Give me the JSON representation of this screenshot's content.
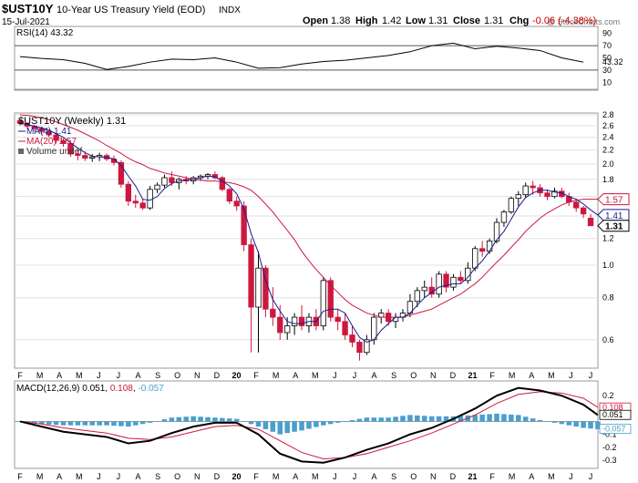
{
  "header": {
    "symbol": "$UST10Y",
    "name": "10-Year US Treasury Yield (EOD)",
    "exchange": "INDX",
    "date": "15-Jul-2021",
    "watermark": "@ StockCharts.com",
    "open_label": "Open",
    "open": "1.38",
    "high_label": "High",
    "high": "1.42",
    "low_label": "Low",
    "low": "1.31",
    "close_label": "Close",
    "close": "1.31",
    "chg_label": "Chg",
    "chg": "-0.06 (-4.38%)"
  },
  "colors": {
    "up": "#ffffff",
    "down": "#cc1840",
    "ma4": "#1a1a8c",
    "ma20": "#cc1840",
    "rsi_line": "#000000",
    "rsi_over": "#3a7d3a",
    "rsi_under": "#8b4a4a",
    "macd_line": "#000000",
    "signal_line": "#cc1840",
    "hist": "#4a9fcc",
    "chg": "#cc0000"
  },
  "chart_data": [
    {
      "type": "line",
      "panel": "rsi",
      "label": "RSI(14)",
      "last_value": "43.32",
      "ylim": [
        0,
        100
      ],
      "y_ticks": [
        "90",
        "70",
        "50",
        "30",
        "10"
      ],
      "reference_lines": [
        70,
        30
      ],
      "x": [
        0,
        3,
        6,
        9,
        12,
        15,
        18,
        21,
        24,
        27,
        30,
        33,
        36,
        39,
        42,
        45,
        48,
        51,
        54,
        57,
        60,
        63,
        66,
        69,
        72,
        75,
        78
      ],
      "values": [
        52,
        49,
        47,
        41,
        31,
        36,
        43,
        48,
        47,
        50,
        43,
        33,
        34,
        40,
        44,
        46,
        50,
        54,
        60,
        70,
        74,
        65,
        69,
        66,
        62,
        50,
        43
      ]
    },
    {
      "type": "candlestick",
      "panel": "price",
      "label": "$UST10Y (Weekly)",
      "last_value": "1.31",
      "scale": "log",
      "ylim": [
        0.5,
        2.8
      ],
      "y_ticks": [
        "2.8",
        "2.6",
        "2.4",
        "2.2",
        "2.0",
        "1.8",
        "1.6",
        "1.4",
        "1.2",
        "1.0",
        "0.8",
        "0.6"
      ],
      "right_labels": [
        {
          "text": "1.57",
          "value": 1.57
        },
        {
          "text": "1.41",
          "value": 1.41
        },
        {
          "text": "1.31",
          "value": 1.31
        }
      ],
      "legend": [
        {
          "text": "MA(4) 1.41"
        },
        {
          "text": "MA(20) 1.57"
        },
        {
          "text": "Volume undef"
        }
      ],
      "x_ticks": [
        "F",
        "M",
        "A",
        "M",
        "J",
        "J",
        "A",
        "S",
        "O",
        "N",
        "D",
        "20",
        "F",
        "M",
        "A",
        "M",
        "J",
        "J",
        "A",
        "S",
        "O",
        "N",
        "D",
        "21",
        "F",
        "M",
        "A",
        "M",
        "J",
        "J"
      ],
      "bars": [
        {
          "o": 2.69,
          "h": 2.72,
          "l": 2.6,
          "c": 2.64
        },
        {
          "o": 2.64,
          "h": 2.66,
          "l": 2.55,
          "c": 2.59
        },
        {
          "o": 2.59,
          "h": 2.62,
          "l": 2.5,
          "c": 2.55
        },
        {
          "o": 2.55,
          "h": 2.58,
          "l": 2.45,
          "c": 2.5
        },
        {
          "o": 2.5,
          "h": 2.53,
          "l": 2.4,
          "c": 2.44
        },
        {
          "o": 2.44,
          "h": 2.47,
          "l": 2.3,
          "c": 2.35
        },
        {
          "o": 2.35,
          "h": 2.38,
          "l": 2.25,
          "c": 2.3
        },
        {
          "o": 2.3,
          "h": 2.33,
          "l": 2.1,
          "c": 2.14
        },
        {
          "o": 2.14,
          "h": 2.2,
          "l": 2.05,
          "c": 2.12
        },
        {
          "o": 2.12,
          "h": 2.18,
          "l": 2.04,
          "c": 2.08
        },
        {
          "o": 2.08,
          "h": 2.14,
          "l": 2.03,
          "c": 2.1
        },
        {
          "o": 2.1,
          "h": 2.16,
          "l": 2.04,
          "c": 2.12
        },
        {
          "o": 2.12,
          "h": 2.15,
          "l": 2.04,
          "c": 2.07
        },
        {
          "o": 2.07,
          "h": 2.12,
          "l": 1.98,
          "c": 2.02
        },
        {
          "o": 2.02,
          "h": 2.05,
          "l": 1.7,
          "c": 1.74
        },
        {
          "o": 1.74,
          "h": 1.78,
          "l": 1.5,
          "c": 1.55
        },
        {
          "o": 1.55,
          "h": 1.62,
          "l": 1.48,
          "c": 1.53
        },
        {
          "o": 1.53,
          "h": 1.58,
          "l": 1.46,
          "c": 1.48
        },
        {
          "o": 1.48,
          "h": 1.72,
          "l": 1.46,
          "c": 1.68
        },
        {
          "o": 1.68,
          "h": 1.76,
          "l": 1.64,
          "c": 1.73
        },
        {
          "o": 1.73,
          "h": 1.86,
          "l": 1.7,
          "c": 1.82
        },
        {
          "o": 1.82,
          "h": 1.9,
          "l": 1.72,
          "c": 1.76
        },
        {
          "o": 1.76,
          "h": 1.82,
          "l": 1.68,
          "c": 1.8
        },
        {
          "o": 1.8,
          "h": 1.84,
          "l": 1.74,
          "c": 1.78
        },
        {
          "o": 1.78,
          "h": 1.84,
          "l": 1.74,
          "c": 1.82
        },
        {
          "o": 1.82,
          "h": 1.86,
          "l": 1.78,
          "c": 1.84
        },
        {
          "o": 1.84,
          "h": 1.88,
          "l": 1.8,
          "c": 1.86
        },
        {
          "o": 1.86,
          "h": 1.9,
          "l": 1.8,
          "c": 1.82
        },
        {
          "o": 1.82,
          "h": 1.84,
          "l": 1.66,
          "c": 1.68
        },
        {
          "o": 1.68,
          "h": 1.7,
          "l": 1.52,
          "c": 1.55
        },
        {
          "o": 1.55,
          "h": 1.6,
          "l": 1.45,
          "c": 1.5
        },
        {
          "o": 1.5,
          "h": 1.55,
          "l": 1.1,
          "c": 1.15
        },
        {
          "o": 1.15,
          "h": 1.2,
          "l": 0.55,
          "c": 0.75
        },
        {
          "o": 0.75,
          "h": 1.1,
          "l": 0.55,
          "c": 0.98
        },
        {
          "o": 0.98,
          "h": 1.0,
          "l": 0.7,
          "c": 0.74
        },
        {
          "o": 0.74,
          "h": 0.86,
          "l": 0.66,
          "c": 0.7
        },
        {
          "o": 0.7,
          "h": 0.76,
          "l": 0.6,
          "c": 0.63
        },
        {
          "o": 0.63,
          "h": 0.7,
          "l": 0.6,
          "c": 0.66
        },
        {
          "o": 0.66,
          "h": 0.72,
          "l": 0.62,
          "c": 0.7
        },
        {
          "o": 0.7,
          "h": 0.76,
          "l": 0.64,
          "c": 0.66
        },
        {
          "o": 0.66,
          "h": 0.72,
          "l": 0.63,
          "c": 0.7
        },
        {
          "o": 0.7,
          "h": 0.74,
          "l": 0.64,
          "c": 0.66
        },
        {
          "o": 0.66,
          "h": 0.92,
          "l": 0.64,
          "c": 0.9
        },
        {
          "o": 0.9,
          "h": 0.92,
          "l": 0.68,
          "c": 0.7
        },
        {
          "o": 0.7,
          "h": 0.74,
          "l": 0.64,
          "c": 0.68
        },
        {
          "o": 0.68,
          "h": 0.72,
          "l": 0.6,
          "c": 0.62
        },
        {
          "o": 0.62,
          "h": 0.66,
          "l": 0.57,
          "c": 0.59
        },
        {
          "o": 0.59,
          "h": 0.6,
          "l": 0.52,
          "c": 0.55
        },
        {
          "o": 0.55,
          "h": 0.62,
          "l": 0.54,
          "c": 0.6
        },
        {
          "o": 0.6,
          "h": 0.72,
          "l": 0.58,
          "c": 0.7
        },
        {
          "o": 0.7,
          "h": 0.74,
          "l": 0.67,
          "c": 0.72
        },
        {
          "o": 0.72,
          "h": 0.74,
          "l": 0.66,
          "c": 0.68
        },
        {
          "o": 0.68,
          "h": 0.72,
          "l": 0.65,
          "c": 0.7
        },
        {
          "o": 0.7,
          "h": 0.74,
          "l": 0.68,
          "c": 0.72
        },
        {
          "o": 0.72,
          "h": 0.82,
          "l": 0.7,
          "c": 0.78
        },
        {
          "o": 0.78,
          "h": 0.86,
          "l": 0.75,
          "c": 0.84
        },
        {
          "o": 0.84,
          "h": 0.9,
          "l": 0.8,
          "c": 0.86
        },
        {
          "o": 0.86,
          "h": 0.92,
          "l": 0.8,
          "c": 0.82
        },
        {
          "o": 0.82,
          "h": 0.96,
          "l": 0.8,
          "c": 0.94
        },
        {
          "o": 0.94,
          "h": 0.96,
          "l": 0.83,
          "c": 0.86
        },
        {
          "o": 0.86,
          "h": 0.94,
          "l": 0.84,
          "c": 0.92
        },
        {
          "o": 0.92,
          "h": 0.96,
          "l": 0.88,
          "c": 0.9
        },
        {
          "o": 0.9,
          "h": 1.02,
          "l": 0.88,
          "c": 0.98
        },
        {
          "o": 0.98,
          "h": 1.14,
          "l": 0.96,
          "c": 1.12
        },
        {
          "o": 1.12,
          "h": 1.18,
          "l": 1.06,
          "c": 1.1
        },
        {
          "o": 1.1,
          "h": 1.2,
          "l": 1.08,
          "c": 1.18
        },
        {
          "o": 1.18,
          "h": 1.38,
          "l": 1.16,
          "c": 1.34
        },
        {
          "o": 1.34,
          "h": 1.46,
          "l": 1.3,
          "c": 1.44
        },
        {
          "o": 1.44,
          "h": 1.6,
          "l": 1.42,
          "c": 1.58
        },
        {
          "o": 1.58,
          "h": 1.66,
          "l": 1.5,
          "c": 1.62
        },
        {
          "o": 1.62,
          "h": 1.76,
          "l": 1.58,
          "c": 1.72
        },
        {
          "o": 1.72,
          "h": 1.78,
          "l": 1.62,
          "c": 1.7
        },
        {
          "o": 1.7,
          "h": 1.74,
          "l": 1.6,
          "c": 1.64
        },
        {
          "o": 1.64,
          "h": 1.68,
          "l": 1.56,
          "c": 1.6
        },
        {
          "o": 1.6,
          "h": 1.7,
          "l": 1.58,
          "c": 1.66
        },
        {
          "o": 1.66,
          "h": 1.7,
          "l": 1.58,
          "c": 1.6
        },
        {
          "o": 1.6,
          "h": 1.64,
          "l": 1.5,
          "c": 1.54
        },
        {
          "o": 1.54,
          "h": 1.58,
          "l": 1.44,
          "c": 1.48
        },
        {
          "o": 1.48,
          "h": 1.5,
          "l": 1.38,
          "c": 1.42
        },
        {
          "o": 1.38,
          "h": 1.42,
          "l": 1.31,
          "c": 1.31
        }
      ],
      "ma4": [
        2.64,
        2.62,
        2.59,
        2.56,
        2.52,
        2.46,
        2.4,
        2.31,
        2.23,
        2.16,
        2.11,
        2.1,
        2.09,
        2.07,
        1.98,
        1.84,
        1.72,
        1.57,
        1.56,
        1.6,
        1.69,
        1.75,
        1.78,
        1.79,
        1.8,
        1.82,
        1.84,
        1.83,
        1.78,
        1.72,
        1.63,
        1.47,
        1.24,
        1.09,
        0.9,
        0.79,
        0.73,
        0.68,
        0.67,
        0.67,
        0.68,
        0.68,
        0.73,
        0.74,
        0.74,
        0.72,
        0.66,
        0.61,
        0.59,
        0.6,
        0.64,
        0.67,
        0.7,
        0.7,
        0.72,
        0.76,
        0.8,
        0.83,
        0.86,
        0.87,
        0.88,
        0.88,
        0.92,
        0.98,
        1.03,
        1.1,
        1.19,
        1.26,
        1.37,
        1.49,
        1.59,
        1.64,
        1.67,
        1.67,
        1.65,
        1.64,
        1.6,
        1.57,
        1.52,
        1.46,
        1.41
      ],
      "ma20": [
        2.8,
        2.79,
        2.77,
        2.74,
        2.71,
        2.67,
        2.62,
        2.57,
        2.52,
        2.46,
        2.4,
        2.34,
        2.27,
        2.21,
        2.15,
        2.08,
        2.03,
        1.99,
        1.94,
        1.91,
        1.88,
        1.86,
        1.84,
        1.82,
        1.8,
        1.79,
        1.78,
        1.78,
        1.77,
        1.76,
        1.74,
        1.71,
        1.67,
        1.6,
        1.52,
        1.44,
        1.35,
        1.27,
        1.19,
        1.1,
        1.03,
        0.97,
        0.92,
        0.87,
        0.83,
        0.79,
        0.76,
        0.74,
        0.72,
        0.71,
        0.7,
        0.7,
        0.7,
        0.7,
        0.71,
        0.72,
        0.73,
        0.74,
        0.76,
        0.78,
        0.8,
        0.82,
        0.85,
        0.88,
        0.92,
        0.97,
        1.02,
        1.07,
        1.13,
        1.19,
        1.26,
        1.32,
        1.38,
        1.43,
        1.47,
        1.51,
        1.54,
        1.56,
        1.57,
        1.57,
        1.57
      ]
    },
    {
      "type": "line",
      "panel": "macd",
      "label": "MACD(12,26,9)",
      "values_text": [
        "0.051",
        "0.108",
        "-0.057"
      ],
      "ylim": [
        -0.35,
        0.3
      ],
      "y_ticks": [
        "0.2",
        "0.1",
        "-0.1",
        "-0.2",
        "-0.3"
      ],
      "right_labels": [
        {
          "text": "0.108",
          "value": 0.108
        },
        {
          "text": "0.051",
          "value": 0.051
        },
        {
          "text": "-0.057",
          "value": -0.057
        }
      ],
      "x": [
        0,
        3,
        6,
        9,
        12,
        15,
        18,
        21,
        24,
        27,
        30,
        33,
        36,
        39,
        42,
        45,
        48,
        51,
        54,
        57,
        60,
        63,
        66,
        69,
        72,
        75,
        78,
        80
      ],
      "macd": [
        0.0,
        -0.04,
        -0.08,
        -0.1,
        -0.12,
        -0.17,
        -0.15,
        -0.09,
        -0.04,
        -0.01,
        -0.01,
        -0.1,
        -0.25,
        -0.31,
        -0.32,
        -0.28,
        -0.22,
        -0.17,
        -0.1,
        -0.05,
        0.02,
        0.1,
        0.2,
        0.26,
        0.24,
        0.2,
        0.13,
        0.05
      ],
      "signal": [
        0.0,
        -0.02,
        -0.05,
        -0.07,
        -0.09,
        -0.13,
        -0.14,
        -0.12,
        -0.08,
        -0.04,
        -0.03,
        -0.06,
        -0.15,
        -0.24,
        -0.29,
        -0.28,
        -0.25,
        -0.2,
        -0.15,
        -0.09,
        -0.02,
        0.05,
        0.14,
        0.21,
        0.23,
        0.22,
        0.18,
        0.11
      ]
    }
  ]
}
